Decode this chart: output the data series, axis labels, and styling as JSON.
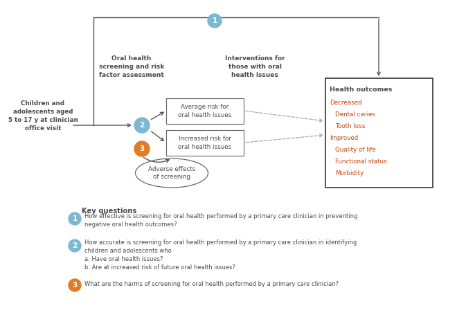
{
  "bg_color": "#ffffff",
  "blue_circle_color": "#7bb8d4",
  "orange_circle_color": "#e07b27",
  "arrow_color": "#555555",
  "box_edge_color": "#666666",
  "text_color": "#4a4a4a",
  "orange_text_color": "#c8440a",
  "population_text": "Children and\nadolescents aged\n5 to 17 y at clinician\noffice visit",
  "screening_label": "Oral health\nscreening and risk\nfactor assessment",
  "intervention_label": "Interventions for\nthose with oral\nhealth issues",
  "avg_risk_text": "Average risk for\noral health issues",
  "inc_risk_text": "Increased risk for\noral health issues",
  "adverse_text": "Adverse effects\nof screening",
  "outcomes_title": "Health outcomes",
  "outcomes_lines": [
    {
      "text": "Decreased",
      "indent": false
    },
    {
      "text": "Dental caries",
      "indent": true
    },
    {
      "text": "Tooth loss",
      "indent": true
    },
    {
      "text": "Improved",
      "indent": false
    },
    {
      "text": "Quality of life",
      "indent": true
    },
    {
      "text": "Functional status",
      "indent": true
    },
    {
      "text": "Morbidity",
      "indent": true
    }
  ],
  "key_questions_title": "Key questions",
  "kq1_text": "How effective is screening for oral health performed by a primary care clinician in preventing\nnegative oral health outcomes?",
  "kq2_text": "How accurate is screening for oral health performed by a primary care clinician in identifying\nchildren and adolescents who\na. Have oral health issues?\nb. Are at increased risk of future oral health issues?",
  "kq3_text": "What are the harms of screening for oral health performed by a primary care clinician?"
}
